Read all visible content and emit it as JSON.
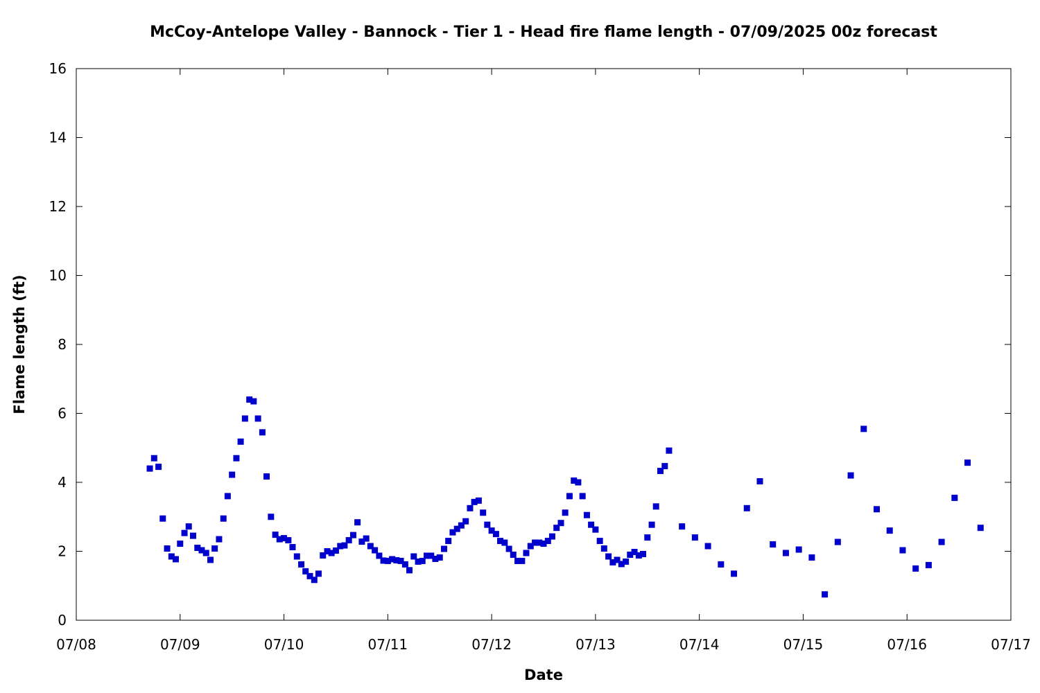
{
  "chart_data": {
    "type": "scatter",
    "title": "McCoy-Antelope Valley - Bannock - Tier 1 - Head fire flame length - 07/09/2025 00z forecast",
    "xlabel": "Date",
    "ylabel": "Flame length (ft)",
    "x_range_days": [
      0,
      9
    ],
    "ylim": [
      0,
      16
    ],
    "x_ticks": [
      "07/08",
      "07/09",
      "07/10",
      "07/11",
      "07/12",
      "07/13",
      "07/14",
      "07/15",
      "07/16",
      "07/17"
    ],
    "y_ticks": [
      0,
      2,
      4,
      6,
      8,
      10,
      12,
      14,
      16
    ],
    "marker_color": "#0000cc",
    "grid": false,
    "series": [
      {
        "x": [
          0.708,
          0.75,
          0.792,
          0.833,
          0.875,
          0.917,
          0.958,
          1.0,
          1.042,
          1.083,
          1.125,
          1.167,
          1.208,
          1.25,
          1.292,
          1.333,
          1.375,
          1.417,
          1.458,
          1.5,
          1.542,
          1.583,
          1.625,
          1.667,
          1.708,
          1.75,
          1.792,
          1.833,
          1.875,
          1.917,
          1.958,
          2.0,
          2.042,
          2.083,
          2.125,
          2.167,
          2.208,
          2.25,
          2.292,
          2.333,
          2.375,
          2.417,
          2.458,
          2.5,
          2.542,
          2.583,
          2.625,
          2.667,
          2.708,
          2.75,
          2.792,
          2.833,
          2.875,
          2.917,
          2.958,
          3.0,
          3.042,
          3.083,
          3.125,
          3.167,
          3.208,
          3.25,
          3.292,
          3.333,
          3.375,
          3.417,
          3.458,
          3.5,
          3.542,
          3.583,
          3.625,
          3.667,
          3.708,
          3.75,
          3.792,
          3.833,
          3.875,
          3.917,
          3.958,
          4.0,
          4.042,
          4.083,
          4.125,
          4.167,
          4.208,
          4.25,
          4.292,
          4.333,
          4.375,
          4.417,
          4.458,
          4.5,
          4.542,
          4.583,
          4.625,
          4.667,
          4.708,
          4.75,
          4.792,
          4.833,
          4.875,
          4.917,
          4.958,
          5.0,
          5.042,
          5.083,
          5.125,
          5.167,
          5.208,
          5.25,
          5.292,
          5.333,
          5.375,
          5.417,
          5.458,
          5.5,
          5.542,
          5.583,
          5.625,
          5.667,
          5.708,
          5.833,
          5.958,
          6.083,
          6.208,
          6.333,
          6.458,
          6.583,
          6.708,
          6.833,
          6.958,
          7.083,
          7.208,
          7.333,
          7.458,
          7.583,
          7.708,
          7.833,
          7.958,
          8.083,
          8.208,
          8.333,
          8.458,
          8.583,
          8.708
        ],
        "y": [
          4.4,
          4.7,
          4.45,
          2.95,
          2.08,
          1.85,
          1.77,
          2.22,
          2.53,
          2.72,
          2.45,
          2.1,
          2.03,
          1.95,
          1.75,
          2.08,
          2.35,
          2.95,
          3.6,
          4.22,
          4.7,
          5.18,
          5.85,
          6.4,
          6.35,
          5.85,
          5.45,
          4.17,
          3.0,
          2.48,
          2.35,
          2.38,
          2.32,
          2.12,
          1.85,
          1.62,
          1.42,
          1.28,
          1.17,
          1.35,
          1.88,
          2.0,
          1.95,
          2.02,
          2.15,
          2.17,
          2.32,
          2.47,
          2.84,
          2.28,
          2.37,
          2.15,
          2.03,
          1.87,
          1.73,
          1.72,
          1.77,
          1.74,
          1.72,
          1.62,
          1.45,
          1.85,
          1.7,
          1.72,
          1.87,
          1.87,
          1.78,
          1.82,
          2.07,
          2.3,
          2.55,
          2.65,
          2.75,
          2.87,
          3.25,
          3.43,
          3.47,
          3.12,
          2.77,
          2.6,
          2.5,
          2.3,
          2.25,
          2.07,
          1.9,
          1.72,
          1.72,
          1.95,
          2.15,
          2.25,
          2.25,
          2.22,
          2.3,
          2.43,
          2.68,
          2.82,
          3.12,
          3.6,
          4.05,
          4.0,
          3.6,
          3.05,
          2.77,
          2.63,
          2.3,
          2.08,
          1.85,
          1.68,
          1.75,
          1.63,
          1.7,
          1.9,
          1.98,
          1.88,
          1.92,
          2.4,
          2.77,
          3.3,
          4.33,
          4.47,
          4.92,
          2.72,
          2.4,
          2.15,
          1.62,
          1.35,
          3.25,
          4.03,
          2.2,
          1.95,
          2.05,
          1.82,
          0.75,
          2.27,
          4.2,
          5.55,
          3.22,
          2.6,
          2.03,
          1.5,
          1.6,
          2.27,
          3.55,
          4.57,
          2.68
        ]
      }
    ]
  }
}
